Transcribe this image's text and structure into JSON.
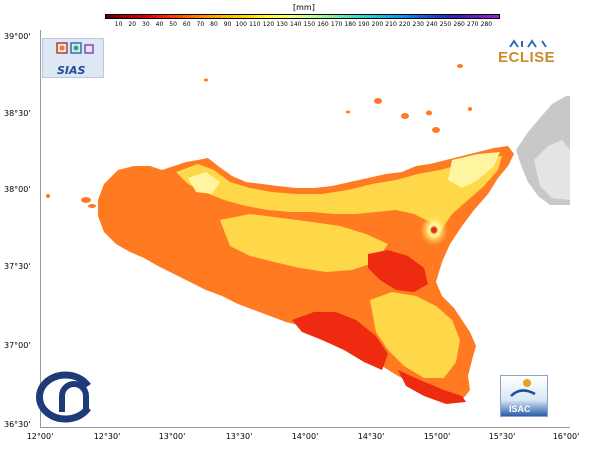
{
  "legend": {
    "unit": "[mm]",
    "ticks": [
      "10",
      "20",
      "30",
      "40",
      "50",
      "60",
      "70",
      "80",
      "90",
      "100",
      "110",
      "120",
      "130",
      "140",
      "150",
      "160",
      "170",
      "180",
      "190",
      "200",
      "210",
      "220",
      "230",
      "240",
      "250",
      "260",
      "270",
      "280"
    ],
    "colors": [
      "#5a0000",
      "#b00000",
      "#e00000",
      "#ff3000",
      "#ff6a00",
      "#ff9a00",
      "#ffc000",
      "#ffe000",
      "#ffff40",
      "#f0ff80",
      "#c0ff90",
      "#80f0a0",
      "#40e0c0",
      "#20c8e0",
      "#10a0f0",
      "#1070e0",
      "#2040c0",
      "#4020b0",
      "#7020c0",
      "#a020d0"
    ]
  },
  "latitude_labels": [
    "39°00'",
    "38°30'",
    "38°00'",
    "37°30'",
    "37°00'",
    "36°30'"
  ],
  "longitude_labels": [
    "12°00'",
    "12°30'",
    "13°00'",
    "13°30'",
    "14°00'",
    "14°30'",
    "15°00'",
    "15°30'",
    "16°00'"
  ],
  "logos": {
    "sias": "SIAS",
    "eclise": "ECLISE",
    "isac": "ISAC",
    "cnr": "CNR"
  },
  "map": {
    "land_color": "#ff7a20",
    "high_rain_color": "#ffd84a",
    "very_high_color": "#fff4a0",
    "low_rain_color": "#ee2a10",
    "relief_color": "#c8c8c8"
  }
}
